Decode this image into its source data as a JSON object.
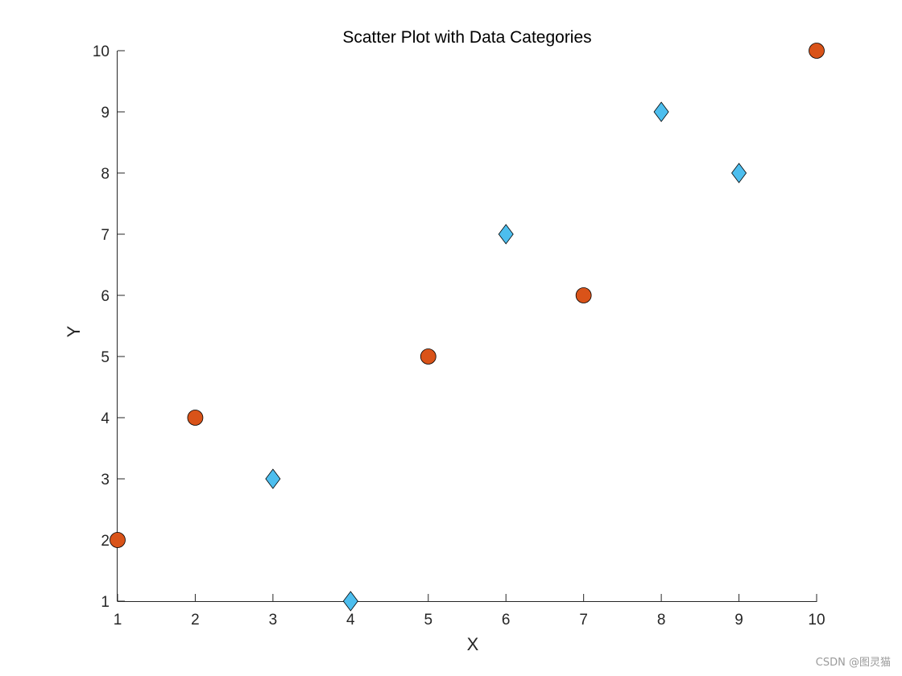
{
  "watermark": "CSDN @图灵猫",
  "chart_data": {
    "type": "scatter",
    "title": "Scatter Plot with Data Categories",
    "xlabel": "X",
    "ylabel": "Y",
    "xlim": [
      1,
      10
    ],
    "ylim": [
      1,
      10
    ],
    "xticks": [
      1,
      2,
      3,
      4,
      5,
      6,
      7,
      8,
      9,
      10
    ],
    "yticks": [
      1,
      2,
      3,
      4,
      5,
      6,
      7,
      8,
      9,
      10
    ],
    "grid": false,
    "series": [
      {
        "marker": "circle",
        "color": "#D95319",
        "points": [
          {
            "x": 1,
            "y": 2
          },
          {
            "x": 2,
            "y": 4
          },
          {
            "x": 5,
            "y": 5
          },
          {
            "x": 7,
            "y": 6
          },
          {
            "x": 10,
            "y": 10
          }
        ]
      },
      {
        "marker": "diamond",
        "color": "#4DBEEE",
        "points": [
          {
            "x": 3,
            "y": 3
          },
          {
            "x": 4,
            "y": 1
          },
          {
            "x": 6,
            "y": 7
          },
          {
            "x": 8,
            "y": 9
          },
          {
            "x": 9,
            "y": 8
          }
        ]
      }
    ]
  }
}
